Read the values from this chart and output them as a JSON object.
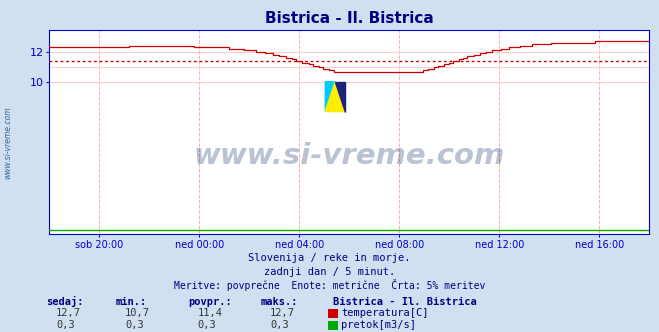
{
  "title": "Bistrica - Il. Bistrica",
  "title_color": "#000080",
  "bg_color": "#d0e0f0",
  "plot_bg_color": "#ffffff",
  "grid_color_v": "#ffaaaa",
  "grid_color_h": "#ffcccc",
  "axis_color": "#0000cc",
  "temp_line_color": "#cc0000",
  "flow_line_color": "#00aa00",
  "avg_line_color": "#cc0000",
  "avg_value": 11.4,
  "ylim": [
    0,
    13.45
  ],
  "yticks": [
    10,
    12
  ],
  "x_labels": [
    "sob 20:00",
    "ned 00:00",
    "ned 04:00",
    "ned 08:00",
    "ned 12:00",
    "ned 16:00"
  ],
  "x_positions": [
    60,
    180,
    300,
    420,
    540,
    660
  ],
  "subtitle1": "Slovenija / reke in morje.",
  "subtitle2": "zadnji dan / 5 minut.",
  "subtitle3": "Meritve: povprečne  Enote: metrične  Črta: 5% meritev",
  "footer_color": "#000080",
  "watermark_text": "www.si-vreme.com",
  "watermark_color": "#1a3a6e",
  "label_color": "#000080",
  "legend_title": "Bistrica - Il. Bistrica",
  "sidebar_text": "www.si-vreme.com",
  "sidebar_color": "#336699"
}
